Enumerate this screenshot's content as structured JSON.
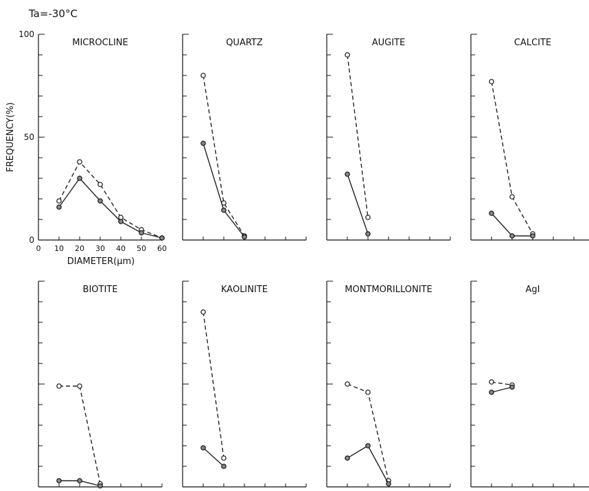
{
  "header": {
    "condition": "Ta=-30°C"
  },
  "chart_data": {
    "type": "line",
    "ylabel": "FREQUENCY(%)",
    "xlabel": "DIAMETER(μm)",
    "ylim": [
      0,
      100
    ],
    "xlim": [
      0,
      60
    ],
    "y_ticks": [
      "0",
      "50",
      "100"
    ],
    "x_ticks": [
      "0",
      "10",
      "20",
      "30",
      "40",
      "50",
      "60"
    ],
    "panels": [
      {
        "title": "MICROCLINE",
        "series": [
          {
            "style": "dashed-open",
            "x": [
              10,
              20,
              30,
              40,
              50,
              60
            ],
            "y": [
              19,
              38,
              27,
              11,
              5,
              1
            ]
          },
          {
            "style": "solid-filled",
            "x": [
              10,
              20,
              30,
              40,
              50,
              60
            ],
            "y": [
              16,
              30,
              19,
              9,
              3.5,
              1
            ]
          }
        ]
      },
      {
        "title": "QUARTZ",
        "series": [
          {
            "style": "dashed-open",
            "x": [
              10,
              20,
              30
            ],
            "y": [
              80,
              18,
              2
            ]
          },
          {
            "style": "solid-filled",
            "x": [
              10,
              20,
              30
            ],
            "y": [
              47,
              14.5,
              1.5
            ]
          }
        ]
      },
      {
        "title": "AUGITE",
        "series": [
          {
            "style": "dashed-open",
            "x": [
              10,
              20
            ],
            "y": [
              90,
              11
            ]
          },
          {
            "style": "solid-filled",
            "x": [
              10,
              20
            ],
            "y": [
              32,
              3
            ]
          }
        ]
      },
      {
        "title": "CALCITE",
        "series": [
          {
            "style": "dashed-open",
            "x": [
              10,
              20,
              30
            ],
            "y": [
              77,
              21,
              3
            ]
          },
          {
            "style": "solid-filled",
            "x": [
              10,
              20,
              30
            ],
            "y": [
              13,
              2,
              2
            ]
          }
        ]
      },
      {
        "title": "BIOTITE",
        "series": [
          {
            "style": "dashed-open",
            "x": [
              10,
              20,
              30
            ],
            "y": [
              49,
              49,
              1.5
            ]
          },
          {
            "style": "solid-filled",
            "x": [
              10,
              20,
              30
            ],
            "y": [
              3,
              3,
              0.5
            ]
          }
        ]
      },
      {
        "title": "KAOLINITE",
        "series": [
          {
            "style": "dashed-open",
            "x": [
              10,
              20
            ],
            "y": [
              85,
              14
            ]
          },
          {
            "style": "solid-filled",
            "x": [
              10,
              20
            ],
            "y": [
              19,
              10
            ]
          }
        ]
      },
      {
        "title": "MONTMORILLONITE",
        "series": [
          {
            "style": "dashed-open",
            "x": [
              10,
              20,
              30
            ],
            "y": [
              50,
              46,
              3
            ]
          },
          {
            "style": "solid-filled",
            "x": [
              10,
              20,
              30
            ],
            "y": [
              14,
              20,
              1.5
            ]
          }
        ]
      },
      {
        "title": "AgI",
        "series": [
          {
            "style": "dashed-open",
            "x": [
              10,
              20
            ],
            "y": [
              51,
              49.5
            ]
          },
          {
            "style": "solid-filled",
            "x": [
              10,
              20
            ],
            "y": [
              46,
              48.5
            ]
          }
        ]
      }
    ]
  }
}
